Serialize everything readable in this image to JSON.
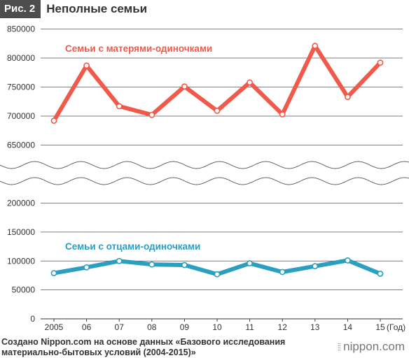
{
  "header": {
    "fig_label": "Рис. 2",
    "title": "Неполные семьи"
  },
  "chart_data": {
    "type": "line",
    "x_unit_label": "(Год)",
    "categories": [
      "2005",
      "06",
      "07",
      "08",
      "09",
      "10",
      "11",
      "12",
      "13",
      "14",
      "15"
    ],
    "y_ticks_upper": [
      650000,
      700000,
      750000,
      800000,
      850000
    ],
    "y_ticks_lower": [
      0,
      50000,
      100000,
      150000,
      200000
    ],
    "axis_break": true,
    "grid": "horizontal",
    "series": [
      {
        "name": "Семьи с матерями-одиночками",
        "color": "#f15a4a",
        "values": [
          692000,
          787000,
          717000,
          702000,
          751000,
          709000,
          758000,
          703000,
          821000,
          733000,
          792000
        ]
      },
      {
        "name": "Семьи с отцами-одиночками",
        "color": "#2a9fc2",
        "values": [
          79000,
          89000,
          100000,
          94000,
          93000,
          77000,
          96000,
          81000,
          91000,
          101000,
          78000
        ]
      }
    ]
  },
  "footer": {
    "source_line1": "Создано Nippon.com на основе данных «Базового исследования",
    "source_line2": "материально-бытовых условий (2004-2015)»",
    "brand": "nippon.com"
  }
}
